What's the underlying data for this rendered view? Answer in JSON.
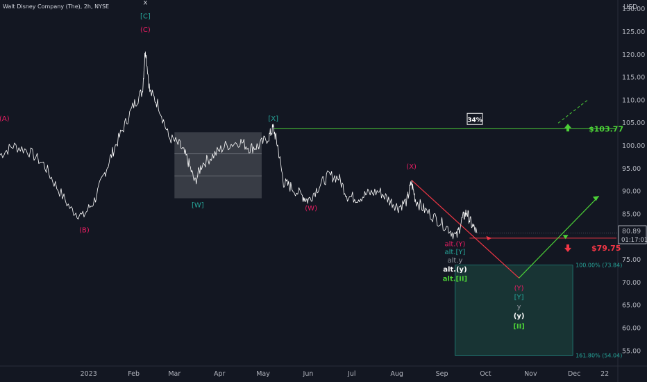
{
  "header": {
    "title": "Walt Disney Company (The), 2h, NYSE",
    "currency": "USD"
  },
  "price": {
    "current": "80.89",
    "countdown": "01:17:01",
    "last_value": 80.89
  },
  "colors": {
    "background": "#131722",
    "price_line": "#ffffff",
    "support_red": "#f23645",
    "resistance_green": "#4cd137",
    "teal": "#26a69a",
    "magenta": "#e91e63",
    "target_box": "#1a3a37"
  },
  "levels": {
    "resistance": {
      "value": 103.77,
      "label": "$103.77",
      "probability": "34%"
    },
    "support": {
      "value": 79.75,
      "label": "$79.75"
    }
  },
  "target_zone": {
    "top": 73.84,
    "bottom": 54.04,
    "top_label": "100.00% (73.84)",
    "bottom_label": "161.80% (54.04)"
  },
  "wave_labels": {
    "x": "x",
    "C_bracket": "[C]",
    "C": "(C)",
    "A": "(A)",
    "B": "(B)",
    "W_bracket": "[W]",
    "X_bracket": "[X]",
    "W": "(W)",
    "X": "(X)",
    "alt_Y": "alt.(Y)",
    "alt_Y_bracket": "alt.[Y]",
    "alt_y": "alt.y",
    "alt_y_paren": "alt.(y)",
    "alt_II": "alt.[II]",
    "Y": "(Y)",
    "Y_bracket": "[Y]",
    "y": "y",
    "y_paren": "(y)",
    "II": "[II]"
  },
  "chart_data": {
    "type": "line",
    "series": [
      {
        "values": [
          {
            "x": "2022-11-01",
            "y": 98
          },
          {
            "x": "2022-11-10",
            "y": 100
          },
          {
            "x": "2022-11-20",
            "y": 99
          },
          {
            "x": "2022-12-01",
            "y": 96
          },
          {
            "x": "2022-12-10",
            "y": 91
          },
          {
            "x": "2022-12-20",
            "y": 86
          },
          {
            "x": "2022-12-28",
            "y": 84.5
          },
          {
            "x": "2023-01-05",
            "y": 88
          },
          {
            "x": "2023-01-12",
            "y": 94
          },
          {
            "x": "2023-01-18",
            "y": 99
          },
          {
            "x": "2023-01-25",
            "y": 104
          },
          {
            "x": "2023-02-01",
            "y": 109
          },
          {
            "x": "2023-02-07",
            "y": 112
          },
          {
            "x": "2023-02-09",
            "y": 121.5
          },
          {
            "x": "2023-02-12",
            "y": 112
          },
          {
            "x": "2023-02-18",
            "y": 109
          },
          {
            "x": "2023-02-25",
            "y": 102
          },
          {
            "x": "2023-03-05",
            "y": 100
          },
          {
            "x": "2023-03-10",
            "y": 97
          },
          {
            "x": "2023-03-15",
            "y": 92
          },
          {
            "x": "2023-03-20",
            "y": 96
          },
          {
            "x": "2023-03-28",
            "y": 98
          },
          {
            "x": "2023-04-05",
            "y": 100
          },
          {
            "x": "2023-04-15",
            "y": 101
          },
          {
            "x": "2023-04-22",
            "y": 99.5
          },
          {
            "x": "2023-04-28",
            "y": 100
          },
          {
            "x": "2023-05-05",
            "y": 102
          },
          {
            "x": "2023-05-08",
            "y": 104
          },
          {
            "x": "2023-05-11",
            "y": 100
          },
          {
            "x": "2023-05-15",
            "y": 92
          },
          {
            "x": "2023-05-20",
            "y": 91
          },
          {
            "x": "2023-05-28",
            "y": 89
          },
          {
            "x": "2023-06-01",
            "y": 88
          },
          {
            "x": "2023-06-08",
            "y": 91
          },
          {
            "x": "2023-06-15",
            "y": 93.5
          },
          {
            "x": "2023-06-22",
            "y": 93
          },
          {
            "x": "2023-06-28",
            "y": 89
          },
          {
            "x": "2023-07-05",
            "y": 88.5
          },
          {
            "x": "2023-07-12",
            "y": 89.5
          },
          {
            "x": "2023-07-20",
            "y": 90
          },
          {
            "x": "2023-07-27",
            "y": 88
          },
          {
            "x": "2023-08-02",
            "y": 86.5
          },
          {
            "x": "2023-08-08",
            "y": 88
          },
          {
            "x": "2023-08-11",
            "y": 92
          },
          {
            "x": "2023-08-14",
            "y": 88
          },
          {
            "x": "2023-08-20",
            "y": 86
          },
          {
            "x": "2023-08-28",
            "y": 84
          },
          {
            "x": "2023-09-05",
            "y": 82
          },
          {
            "x": "2023-09-11",
            "y": 80
          },
          {
            "x": "2023-09-15",
            "y": 84
          },
          {
            "x": "2023-09-18",
            "y": 85.5
          },
          {
            "x": "2023-09-21",
            "y": 83
          },
          {
            "x": "2023-09-25",
            "y": 80.89
          }
        ]
      }
    ],
    "x_ticks": [
      "2023",
      "Feb",
      "Mar",
      "Apr",
      "May",
      "Jun",
      "Jul",
      "Aug",
      "Sep",
      "Oct",
      "Nov",
      "Dec",
      "22"
    ],
    "y_ticks": [
      55,
      60,
      65,
      70,
      75,
      80,
      85,
      90,
      95,
      100,
      105,
      110,
      115,
      120,
      125,
      130
    ],
    "ylim": [
      52,
      132
    ],
    "xlim": [
      "2022-11-01",
      "2023-12-31"
    ],
    "grid": false,
    "annotations": {
      "box_W": {
        "x0": "2023-03-01",
        "x1": "2023-04-30",
        "y0": 88.5,
        "y1": 103
      },
      "resistance_from": "2023-05-08",
      "projection_red": [
        {
          "x": "2023-08-11",
          "y": 92.5
        },
        {
          "x": "2023-10-24",
          "y": 71
        }
      ],
      "projection_green": [
        {
          "x": "2023-10-24",
          "y": 71
        },
        {
          "x": "2023-12-18",
          "y": 89
        }
      ],
      "dashed_green": [
        {
          "x": "2023-11-20",
          "y": 105
        },
        {
          "x": "2023-12-10",
          "y": 110
        }
      ]
    }
  }
}
